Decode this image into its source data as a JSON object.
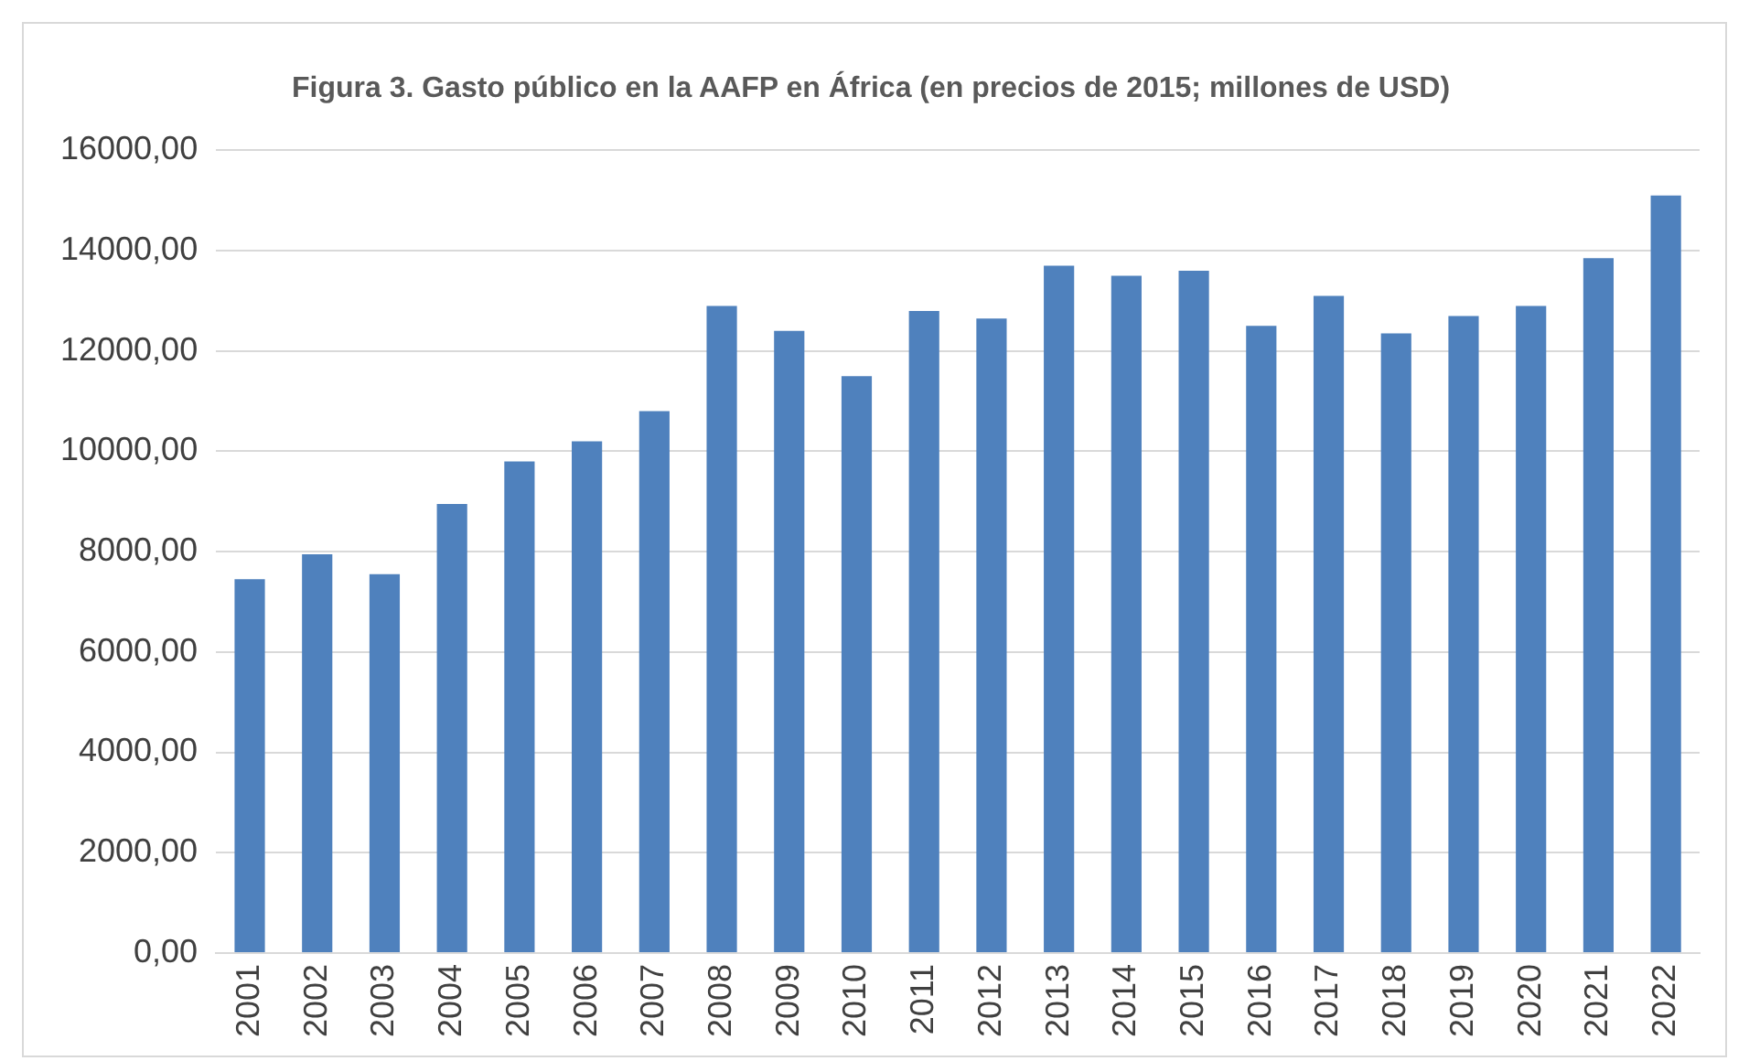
{
  "chart_data": {
    "type": "bar",
    "title": "Figura 3. Gasto público en la AAFP en África (en precios de 2015; millones de USD)",
    "categories": [
      "2001",
      "2002",
      "2003",
      "2004",
      "2005",
      "2006",
      "2007",
      "2008",
      "2009",
      "2010",
      "2011",
      "2012",
      "2013",
      "2014",
      "2015",
      "2016",
      "2017",
      "2018",
      "2019",
      "2020",
      "2021",
      "2022"
    ],
    "values": [
      7450,
      7950,
      7550,
      8950,
      9800,
      10200,
      10800,
      12900,
      12400,
      11500,
      12800,
      12650,
      13700,
      13500,
      13600,
      12500,
      13100,
      12350,
      12700,
      12900,
      13850,
      15100
    ],
    "color": "#4f81bd",
    "ylim": [
      0,
      16000
    ],
    "yticks": [
      {
        "value": 0,
        "label": "0,00"
      },
      {
        "value": 2000,
        "label": "2000,00"
      },
      {
        "value": 4000,
        "label": "4000,00"
      },
      {
        "value": 6000,
        "label": "6000,00"
      },
      {
        "value": 8000,
        "label": "8000,00"
      },
      {
        "value": 10000,
        "label": "10000,00"
      },
      {
        "value": 12000,
        "label": "12000,00"
      },
      {
        "value": 14000,
        "label": "14000,00"
      },
      {
        "value": 16000,
        "label": "16000,00"
      }
    ],
    "grid": "y",
    "legend": false
  }
}
